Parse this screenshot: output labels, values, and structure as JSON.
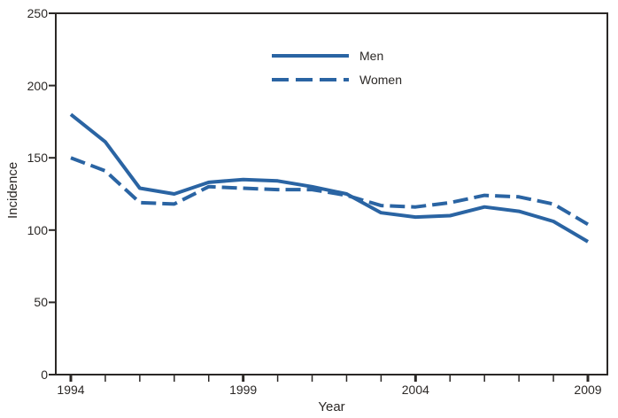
{
  "chart_data": {
    "type": "line",
    "title": "",
    "xlabel": "Year",
    "ylabel": "Incidence",
    "x": [
      1994,
      1995,
      1996,
      1997,
      1998,
      1999,
      2000,
      2001,
      2002,
      2003,
      2004,
      2005,
      2006,
      2007,
      2008,
      2009
    ],
    "series": [
      {
        "name": "Men",
        "style": "solid",
        "values": [
          180,
          161,
          129,
          125,
          133,
          135,
          134,
          130,
          125,
          112,
          109,
          110,
          116,
          113,
          106,
          92
        ]
      },
      {
        "name": "Women",
        "style": "dashed",
        "values": [
          150,
          141,
          119,
          118,
          130,
          129,
          128,
          128,
          124,
          117,
          116,
          119,
          124,
          123,
          118,
          104
        ]
      }
    ],
    "xlim": [
      1994,
      2009
    ],
    "ylim": [
      0,
      250
    ],
    "x_major_ticks": [
      1994,
      1999,
      2004,
      2009
    ],
    "y_ticks": [
      0,
      50,
      100,
      150,
      200,
      250
    ],
    "grid": false,
    "legend_position": "top-center",
    "line_color": "#2a64a3",
    "axis_color": "#2b2826"
  }
}
